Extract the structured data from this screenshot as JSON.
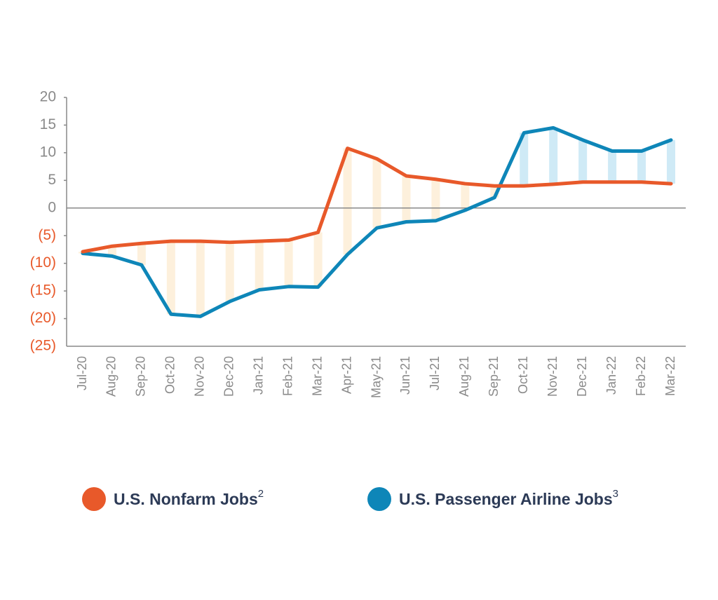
{
  "chart_data": {
    "type": "line",
    "categories": [
      "Jul-20",
      "Aug-20",
      "Sep-20",
      "Oct-20",
      "Nov-20",
      "Dec-20",
      "Jan-21",
      "Feb-21",
      "Mar-21",
      "Apr-21",
      "May-21",
      "Jun-21",
      "Jul-21",
      "Aug-21",
      "Sep-21",
      "Oct-21",
      "Nov-21",
      "Dec-21",
      "Jan-22",
      "Feb-22",
      "Mar-22"
    ],
    "series": [
      {
        "name": "U.S. Nonfarm Jobs",
        "footnote": "2",
        "color": "#e8592a",
        "band_color": "#fdf0dc",
        "values": [
          -7.9,
          -6.9,
          -6.4,
          -6.0,
          -6.0,
          -6.2,
          -6.0,
          -5.8,
          -4.4,
          10.8,
          8.9,
          5.8,
          5.2,
          4.4,
          4.0,
          4.0,
          4.3,
          4.7,
          4.7,
          4.7,
          4.4
        ]
      },
      {
        "name": "U.S. Passenger Airline Jobs",
        "footnote": "3",
        "color": "#0e86b8",
        "band_color": "#cfeaf6",
        "values": [
          -8.2,
          -8.7,
          -10.3,
          -19.2,
          -19.6,
          -16.9,
          -14.8,
          -14.2,
          -14.3,
          -8.4,
          -3.6,
          -2.5,
          -2.3,
          -0.4,
          1.9,
          13.6,
          14.5,
          12.3,
          10.3,
          10.3,
          12.3
        ]
      }
    ],
    "ylim": [
      -25,
      20
    ],
    "yticks": [
      20,
      15,
      10,
      5,
      0,
      {
        "value": -5,
        "label": "(5)"
      },
      {
        "value": -10,
        "label": "(10)"
      },
      {
        "value": -15,
        "label": "(15)"
      },
      {
        "value": -20,
        "label": "(20)"
      },
      {
        "value": -25,
        "label": "(25)"
      }
    ],
    "tick_color": "#8a8a8a",
    "negative_tick_color": "#e8592a"
  }
}
